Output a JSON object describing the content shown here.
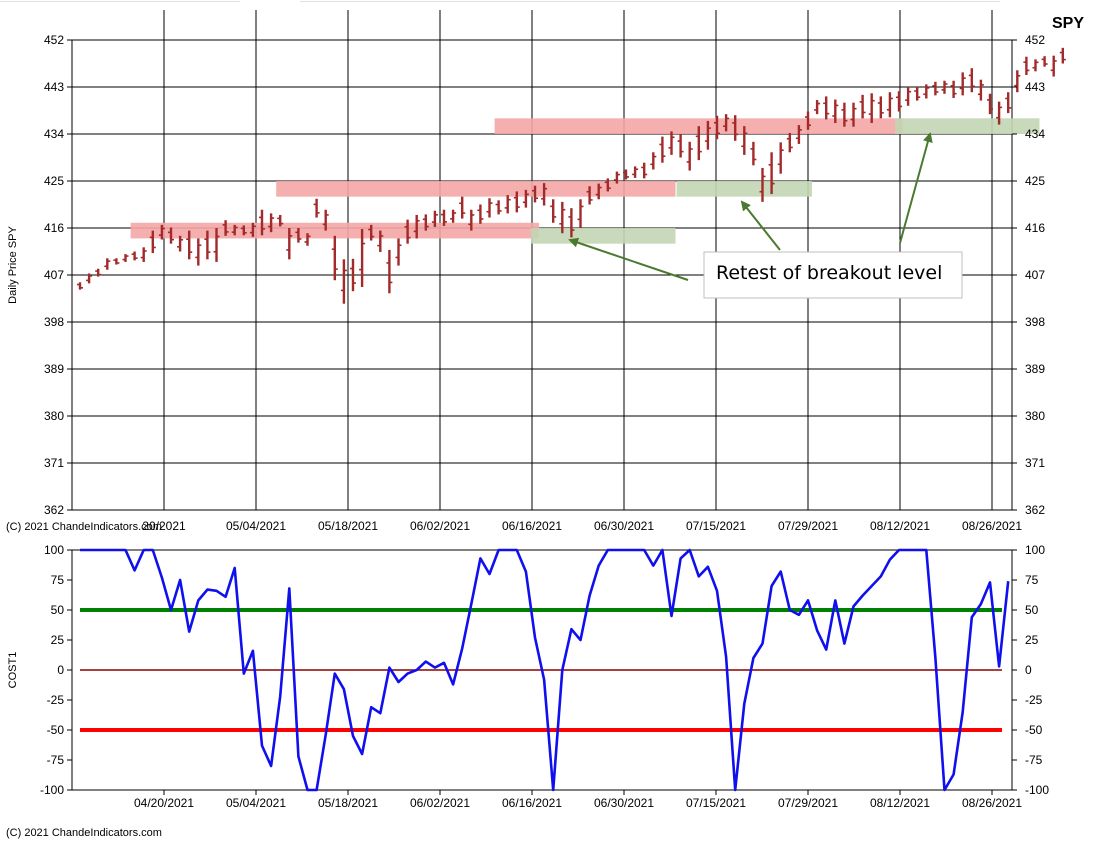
{
  "chart_data": [
    {
      "type": "ohlc",
      "symbol": "SPY",
      "ylabel": "Daily Price SPY",
      "xlabel": "",
      "ylim": [
        362,
        452
      ],
      "y_ticks": [
        452,
        443,
        434,
        425,
        416,
        407,
        398,
        389,
        380,
        371,
        362
      ],
      "x_ticks": [
        "04/20/2021",
        "05/04/2021",
        "05/18/2021",
        "06/02/2021",
        "06/16/2021",
        "06/30/2021",
        "07/15/2021",
        "07/29/2021",
        "08/12/2021",
        "08/26/2021"
      ],
      "first_x_tick_visible": "20/2021",
      "copyright": "(C) 2021 ChandeIndicators.com",
      "grid": true,
      "bar_color": "#a32a2a",
      "start_date": "2021-04-06",
      "bars": [
        [
          404.2,
          405.6
        ],
        [
          405.4,
          407.3
        ],
        [
          406.7,
          408.2
        ],
        [
          408.0,
          410.2
        ],
        [
          409.0,
          410.2
        ],
        [
          409.5,
          411.0
        ],
        [
          409.8,
          411.5
        ],
        [
          409.5,
          412.3
        ],
        [
          411.2,
          415.5
        ],
        [
          413.8,
          416.6
        ],
        [
          413.0,
          416.1
        ],
        [
          411.5,
          414.5
        ],
        [
          410.0,
          415.5
        ],
        [
          408.8,
          414.0
        ],
        [
          410.0,
          415.5
        ],
        [
          409.5,
          416.0
        ],
        [
          414.5,
          417.5
        ],
        [
          414.6,
          416.6
        ],
        [
          414.6,
          416.5
        ],
        [
          414.3,
          417.0
        ],
        [
          414.6,
          419.5
        ],
        [
          415.2,
          418.8
        ],
        [
          416.3,
          418.5
        ],
        [
          410.0,
          416.0
        ],
        [
          413.2,
          416.0
        ],
        [
          412.6,
          415.0
        ],
        [
          418.0,
          421.6
        ],
        [
          415.5,
          419.5
        ],
        [
          406.0,
          414.5
        ],
        [
          401.5,
          410.0
        ],
        [
          403.9,
          410.1
        ],
        [
          404.7,
          415.8
        ],
        [
          413.6,
          416.6
        ],
        [
          411.4,
          415.5
        ],
        [
          403.5,
          411.8
        ],
        [
          408.8,
          414.0
        ],
        [
          413.0,
          417.6
        ],
        [
          414.0,
          418.5
        ],
        [
          415.5,
          418.6
        ],
        [
          416.2,
          419.3
        ],
        [
          416.4,
          419.5
        ],
        [
          417.0,
          419.5
        ],
        [
          417.8,
          422.0
        ],
        [
          415.5,
          419.5
        ],
        [
          416.8,
          420.5
        ],
        [
          418.0,
          421.7
        ],
        [
          418.6,
          421.3
        ],
        [
          418.8,
          422.3
        ],
        [
          419.0,
          423.0
        ],
        [
          419.9,
          423.3
        ],
        [
          420.9,
          424.1
        ],
        [
          420.3,
          424.6
        ],
        [
          417.0,
          421.5
        ],
        [
          415.0,
          421.0
        ],
        [
          414.2,
          419.8
        ],
        [
          416.0,
          421.5
        ],
        [
          420.5,
          424.0
        ],
        [
          421.5,
          424.5
        ],
        [
          423.0,
          425.5
        ],
        [
          424.5,
          426.8
        ],
        [
          425.3,
          427.2
        ],
        [
          425.6,
          427.8
        ],
        [
          425.5,
          428.5
        ],
        [
          427.2,
          430.5
        ],
        [
          428.5,
          433.5
        ],
        [
          430.0,
          434.5
        ],
        [
          429.5,
          434.0
        ],
        [
          427.0,
          432.5
        ],
        [
          429.0,
          435.5
        ],
        [
          431.0,
          436.5
        ],
        [
          433.0,
          437.5
        ],
        [
          434.5,
          437.8
        ],
        [
          432.7,
          437.6
        ],
        [
          430.0,
          435.5
        ],
        [
          428.0,
          432.5
        ],
        [
          421.0,
          427.5
        ],
        [
          422.5,
          430.5
        ],
        [
          426.4,
          432.4
        ],
        [
          430.5,
          434.2
        ],
        [
          432.1,
          435.7
        ],
        [
          434.8,
          438.3
        ],
        [
          437.8,
          440.5
        ],
        [
          436.8,
          441.2
        ],
        [
          436.1,
          440.6
        ],
        [
          435.4,
          440.0
        ],
        [
          435.4,
          440.0
        ],
        [
          437.0,
          441.5
        ],
        [
          436.1,
          441.8
        ],
        [
          437.0,
          441.2
        ],
        [
          437.2,
          442.0
        ],
        [
          438.3,
          442.2
        ],
        [
          439.4,
          443.0
        ],
        [
          440.4,
          443.0
        ],
        [
          440.8,
          443.5
        ],
        [
          441.4,
          444.0
        ],
        [
          441.7,
          444.2
        ],
        [
          440.9,
          444.2
        ],
        [
          441.4,
          445.8
        ],
        [
          442.0,
          446.6
        ],
        [
          440.4,
          444.4
        ],
        [
          437.8,
          441.7
        ],
        [
          435.8,
          440.2
        ],
        [
          438.0,
          442.0
        ],
        [
          442.0,
          446.2
        ],
        [
          445.3,
          448.8
        ],
        [
          446.0,
          448.3
        ],
        [
          446.9,
          448.9
        ],
        [
          445.0,
          449.0
        ],
        [
          447.5,
          450.5
        ]
      ],
      "resistance_zones": [
        {
          "low": 414,
          "high": 417
        },
        {
          "low": 422,
          "high": 425
        },
        {
          "low": 434,
          "high": 437
        }
      ],
      "retest_zones": [
        {
          "low": 413,
          "high": 416
        },
        {
          "low": 422,
          "high": 425
        },
        {
          "low": 434,
          "high": 437
        }
      ],
      "annotations": [
        "Retest of breakout level"
      ],
      "zone_colors": {
        "resistance": "#f4a6a6",
        "retest": "#c2d6b4",
        "arrow": "#4a7a30"
      }
    },
    {
      "type": "line",
      "ylabel": "COST1",
      "ylim": [
        -100,
        100
      ],
      "y_ticks": [
        100,
        75,
        50,
        25,
        0,
        -25,
        -50,
        -75,
        -100
      ],
      "x_ticks": [
        "04/20/2021",
        "05/04/2021",
        "05/18/2021",
        "06/02/2021",
        "06/16/2021",
        "06/30/2021",
        "07/15/2021",
        "07/29/2021",
        "08/12/2021",
        "08/26/2021"
      ],
      "copyright": "(C) 2021 ChandeIndicators.com",
      "grid": false,
      "series": [
        {
          "color": "#1010ee",
          "values": [
            100,
            100,
            100,
            100,
            100,
            100,
            83,
            100,
            100,
            77,
            50,
            75,
            32,
            58,
            67,
            66,
            61,
            85,
            -3,
            16,
            -63,
            -80,
            -22,
            68,
            -72,
            -100,
            -100,
            -54,
            -3,
            -16,
            -55,
            -70,
            -31,
            -36,
            2,
            -10,
            -3,
            0,
            7,
            2,
            6,
            -12,
            18,
            55,
            93,
            80,
            100,
            100,
            100,
            82,
            27,
            -8,
            -100,
            0,
            34,
            25,
            62,
            87,
            100,
            100,
            100,
            100,
            100,
            87,
            100,
            45,
            93,
            100,
            78,
            86,
            66,
            11,
            -100,
            -28,
            10,
            22,
            70,
            82,
            50,
            46,
            58,
            33,
            17,
            58,
            22,
            53,
            62,
            70,
            78,
            92,
            100,
            100,
            100,
            100,
            10,
            -100,
            -87,
            -35,
            44,
            55,
            73,
            3,
            74
          ]
        }
      ],
      "reference_lines": [
        {
          "value": 50,
          "color": "#008000"
        },
        {
          "value": 0,
          "color": "#8b0000"
        },
        {
          "value": -50,
          "color": "#ff0000"
        }
      ]
    }
  ]
}
